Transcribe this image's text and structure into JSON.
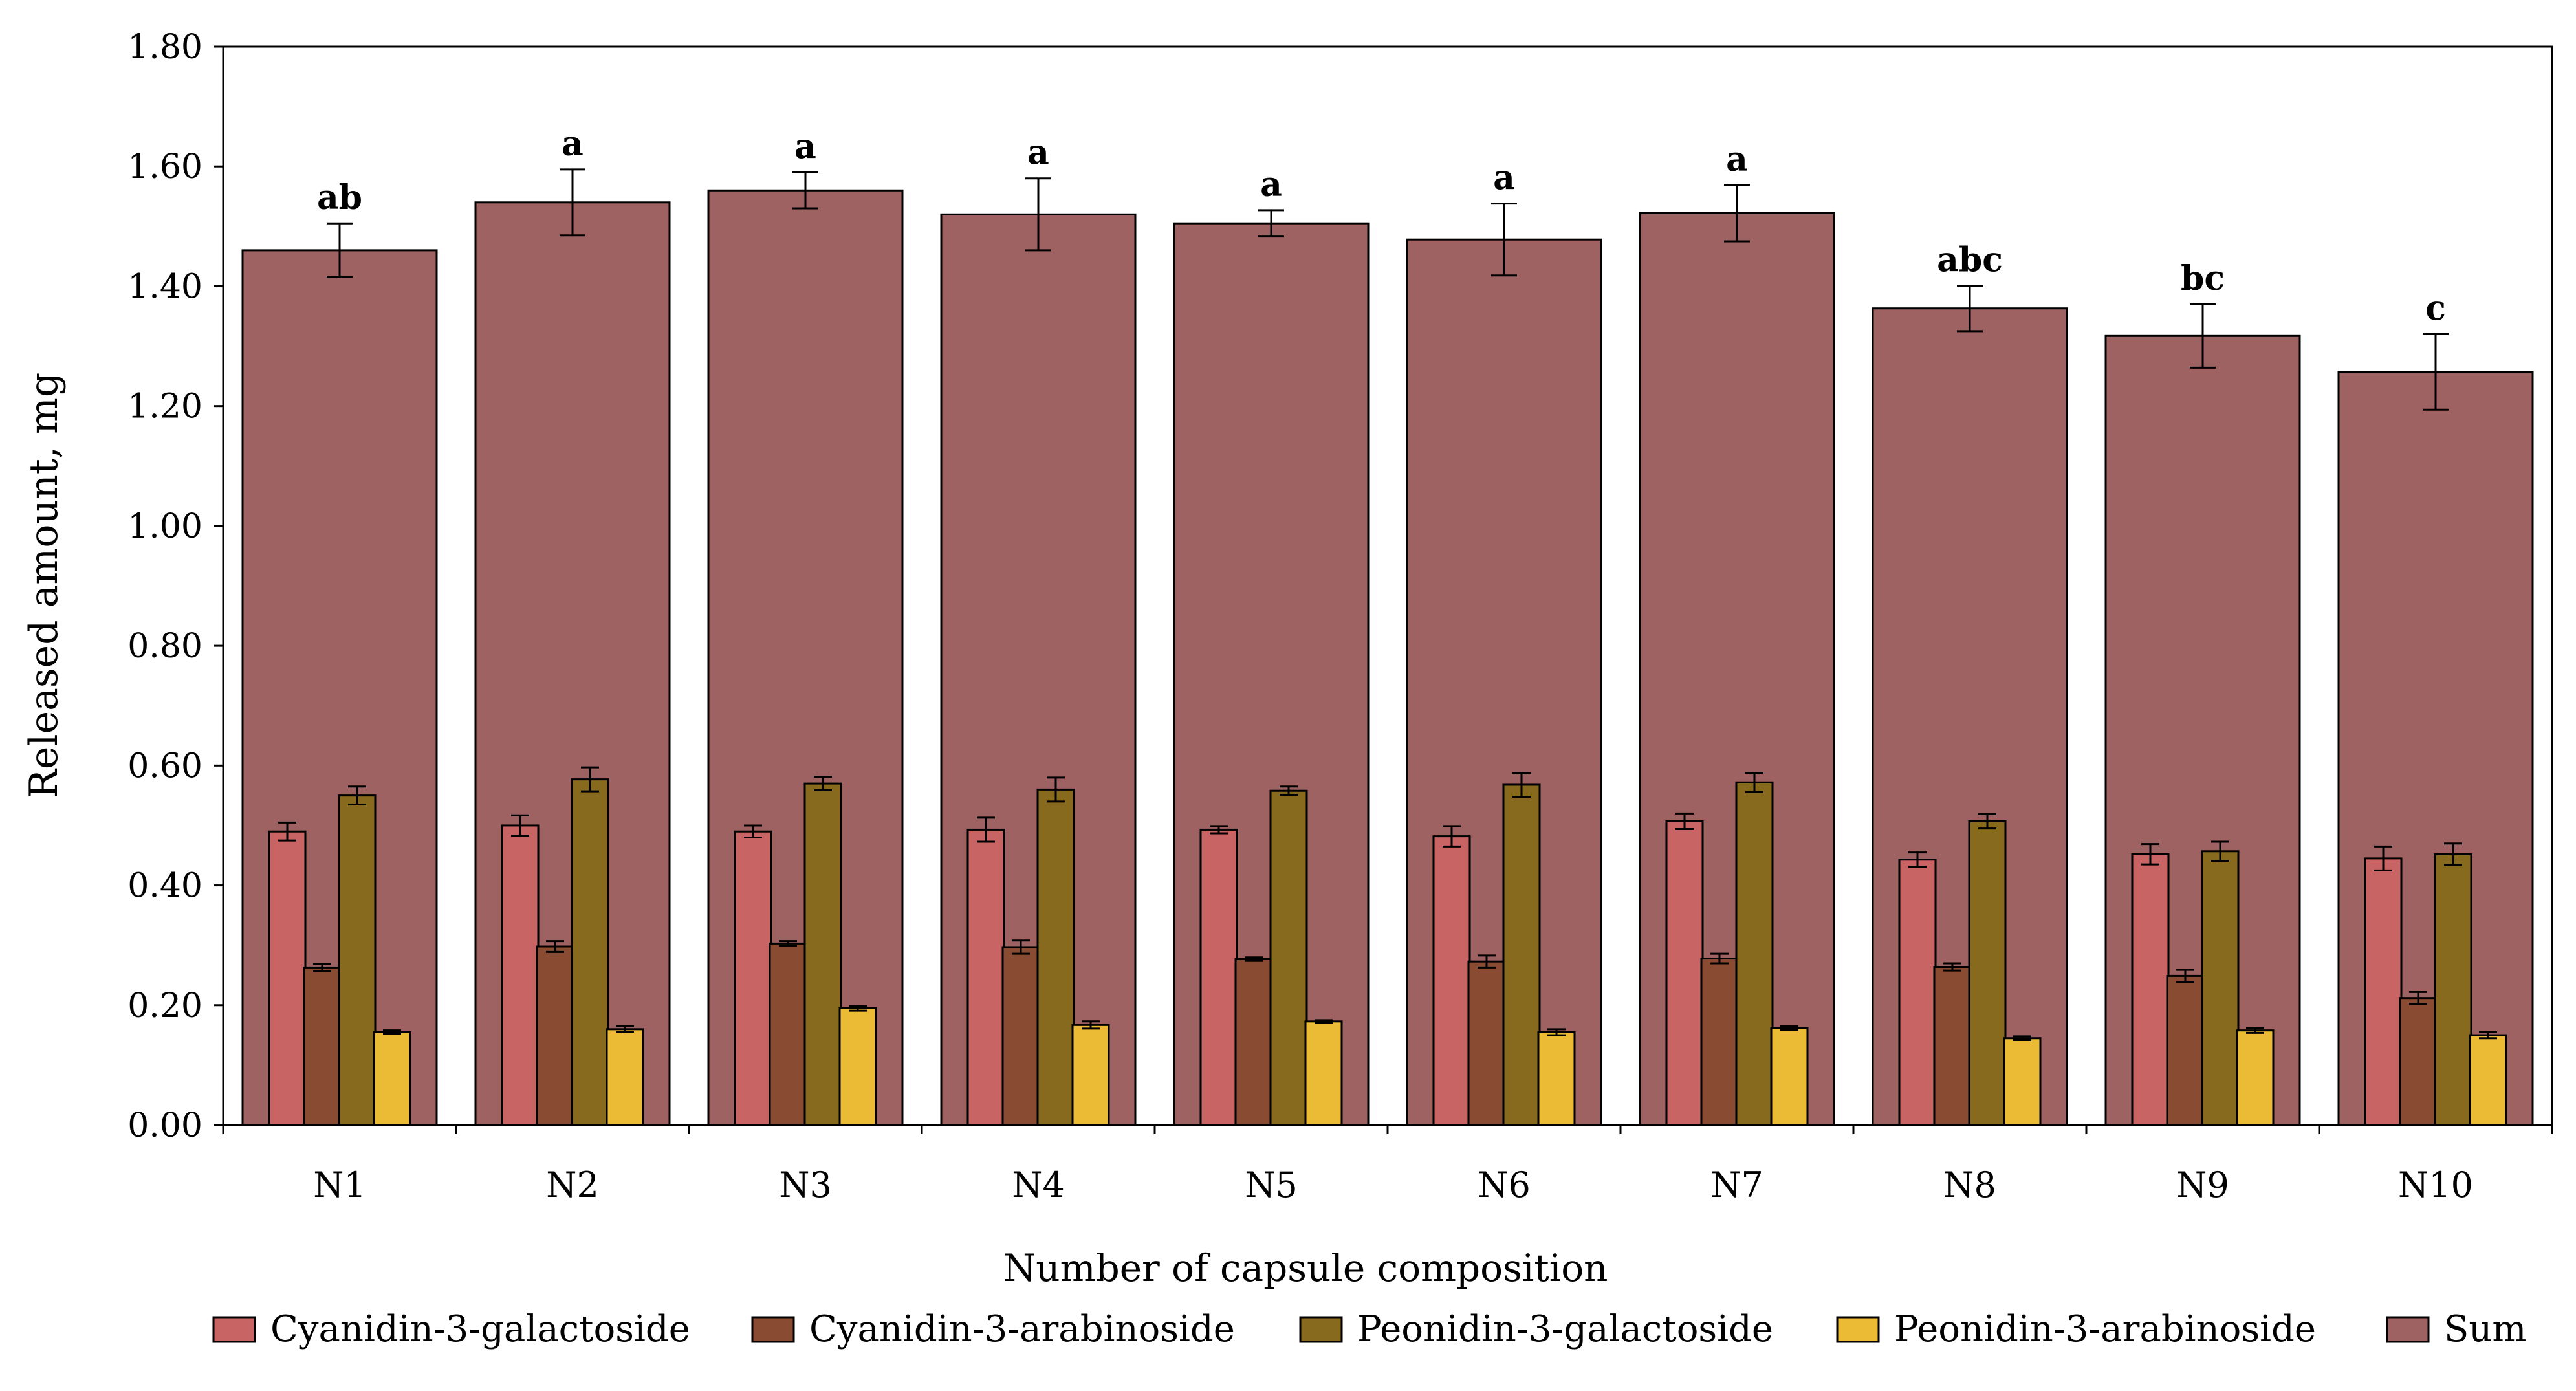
{
  "chart_data": {
    "type": "bar",
    "title": "",
    "xlabel": "Number of capsule composition",
    "ylabel": "Released amount, mg",
    "ylim": [
      0,
      1.8
    ],
    "yticks": [
      "0.00",
      "0.20",
      "0.40",
      "0.60",
      "0.80",
      "1.00",
      "1.20",
      "1.40",
      "1.60",
      "1.80"
    ],
    "categories": [
      "N1",
      "N2",
      "N3",
      "N4",
      "N5",
      "N6",
      "N7",
      "N8",
      "N9",
      "N10"
    ],
    "sum": {
      "name": "Sum",
      "color": "#9E6262",
      "values": [
        1.46,
        1.54,
        1.56,
        1.52,
        1.505,
        1.478,
        1.522,
        1.363,
        1.317,
        1.257
      ],
      "errors": [
        0.045,
        0.055,
        0.03,
        0.06,
        0.022,
        0.06,
        0.047,
        0.038,
        0.053,
        0.063
      ],
      "letters": [
        "ab",
        "a",
        "a",
        "a",
        "a",
        "a",
        "a",
        "abc",
        "bc",
        "c"
      ]
    },
    "series": [
      {
        "name": "Cyanidin-3-galactoside",
        "color": "#C86464",
        "values": [
          0.49,
          0.5,
          0.49,
          0.493,
          0.493,
          0.482,
          0.507,
          0.443,
          0.452,
          0.445
        ],
        "errors": [
          0.015,
          0.017,
          0.01,
          0.02,
          0.006,
          0.017,
          0.013,
          0.012,
          0.017,
          0.02
        ]
      },
      {
        "name": "Cyanidin-3-arabinoside",
        "color": "#8A4B33",
        "values": [
          0.263,
          0.298,
          0.303,
          0.297,
          0.277,
          0.273,
          0.278,
          0.264,
          0.249,
          0.212
        ],
        "errors": [
          0.006,
          0.009,
          0.004,
          0.011,
          0.003,
          0.01,
          0.008,
          0.006,
          0.01,
          0.01
        ]
      },
      {
        "name": "Peonidin-3-galactoside",
        "color": "#876A1E",
        "values": [
          0.55,
          0.577,
          0.57,
          0.56,
          0.558,
          0.568,
          0.572,
          0.507,
          0.457,
          0.452
        ],
        "errors": [
          0.015,
          0.02,
          0.011,
          0.02,
          0.007,
          0.02,
          0.016,
          0.012,
          0.016,
          0.018
        ]
      },
      {
        "name": "Peonidin-3-arabinoside",
        "color": "#EBBB35",
        "values": [
          0.155,
          0.16,
          0.195,
          0.167,
          0.173,
          0.155,
          0.162,
          0.145,
          0.158,
          0.15
        ],
        "errors": [
          0.003,
          0.005,
          0.004,
          0.006,
          0.002,
          0.005,
          0.003,
          0.003,
          0.004,
          0.005
        ]
      }
    ],
    "legend": [
      "Cyanidin-3-galactoside",
      "Cyanidin-3-arabinoside",
      "Peonidin-3-galactoside",
      "Peonidin-3-arabinoside",
      "Sum"
    ],
    "legend_position": "bottom",
    "grid": false
  }
}
